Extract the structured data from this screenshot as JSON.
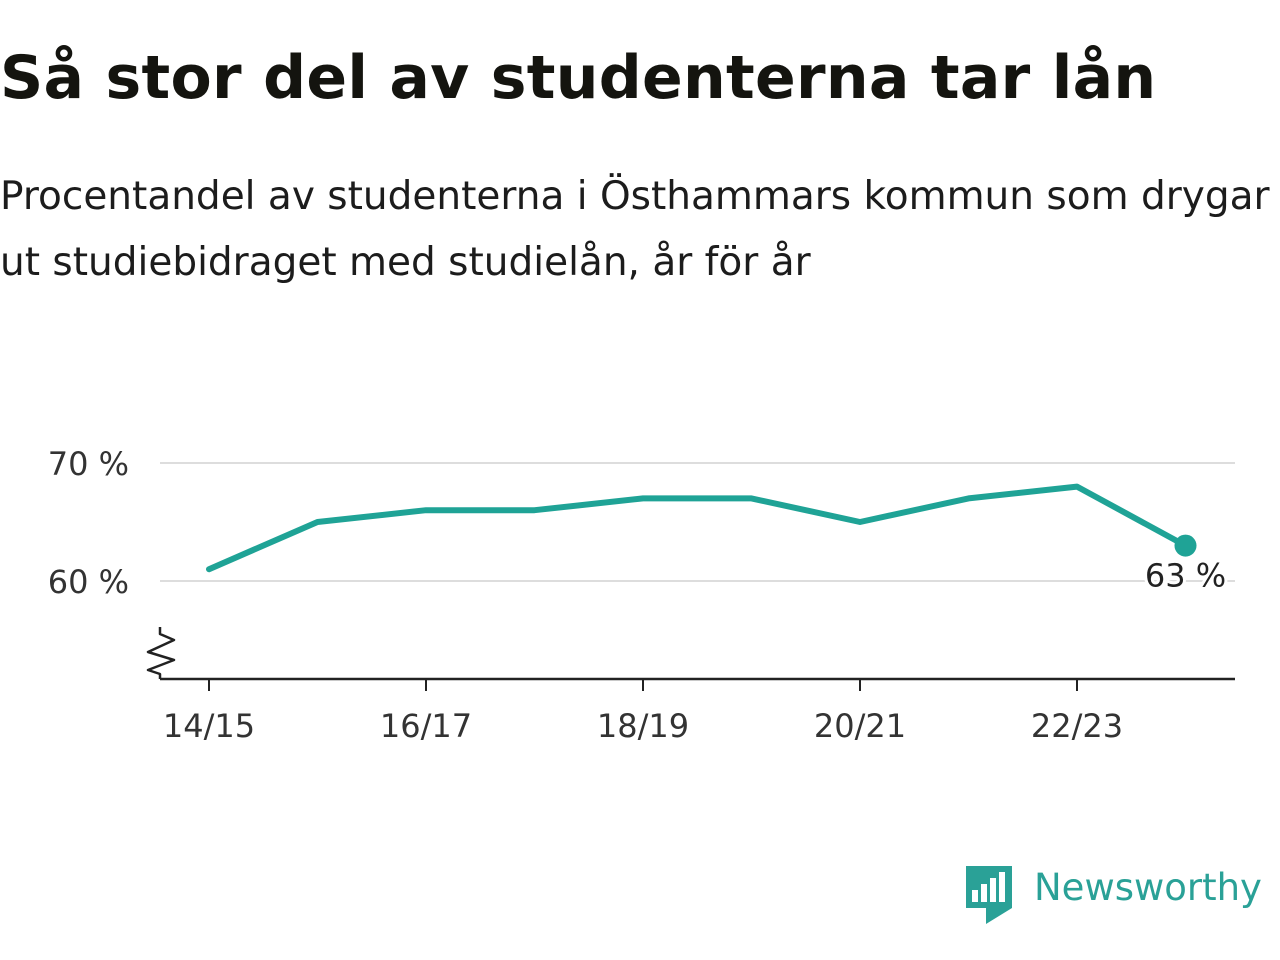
{
  "title": "Så stor del av studenterna tar lån",
  "subtitle": "Procentandel av studenterna i Östhammars kommun som drygar ut studiebidraget med studielån, år för år",
  "brand": {
    "name": "Newsworthy",
    "color": "#2aa197"
  },
  "chart_data": {
    "type": "line",
    "x": [
      "14/15",
      "15/16",
      "16/17",
      "17/18",
      "18/19",
      "19/20",
      "20/21",
      "21/22",
      "22/23",
      "23/24"
    ],
    "x_tick_labels": [
      "14/15",
      "16/17",
      "18/19",
      "20/21",
      "22/23"
    ],
    "series": [
      {
        "values": [
          61,
          65,
          66,
          66,
          67,
          67,
          65,
          67,
          68,
          63
        ],
        "color": "#1fa396"
      }
    ],
    "y_ticks": [
      60,
      70
    ],
    "y_tick_labels": [
      "60 %",
      "70 %"
    ],
    "ylim": [
      52,
      72
    ],
    "grid": true,
    "axis_break": true,
    "last_point_label": "63 %"
  }
}
